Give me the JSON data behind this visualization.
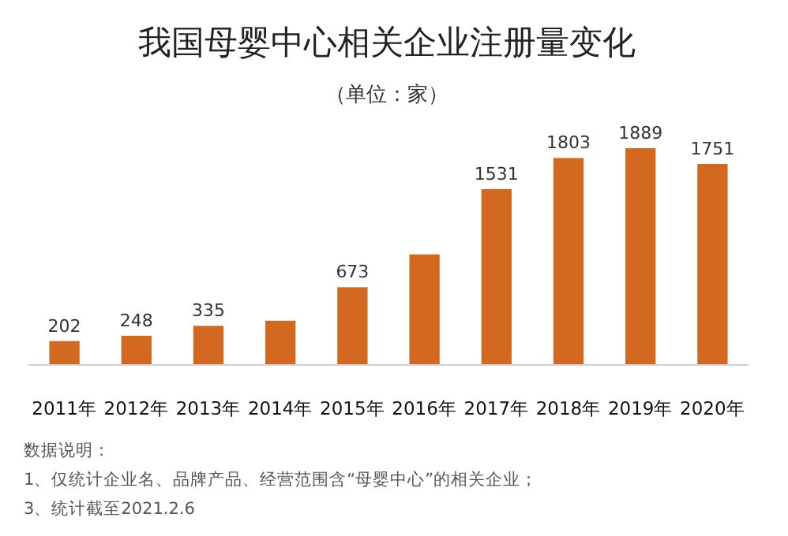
{
  "chart_data": {
    "type": "bar",
    "title": "我国母婴中心相关企业注册量变化",
    "subtitle": "（单位：家）",
    "categories": [
      "2011年",
      "2012年",
      "2013年",
      "2014年",
      "2015年",
      "2016年",
      "2017年",
      "2018年",
      "2019年",
      "2020年"
    ],
    "values": [
      202,
      248,
      335,
      380,
      673,
      960,
      1531,
      1803,
      1889,
      1751
    ],
    "value_labels": [
      "202",
      "248",
      "335",
      null,
      "673",
      null,
      "1531",
      "1803",
      "1889",
      "1751"
    ],
    "color": "#d2691e",
    "annotations": [
      "数据说明：",
      "1、仅统计企业名、品牌产品、经营范围含“母婴中心”的相关企业；",
      "3、统计截至2021.2.6"
    ]
  }
}
